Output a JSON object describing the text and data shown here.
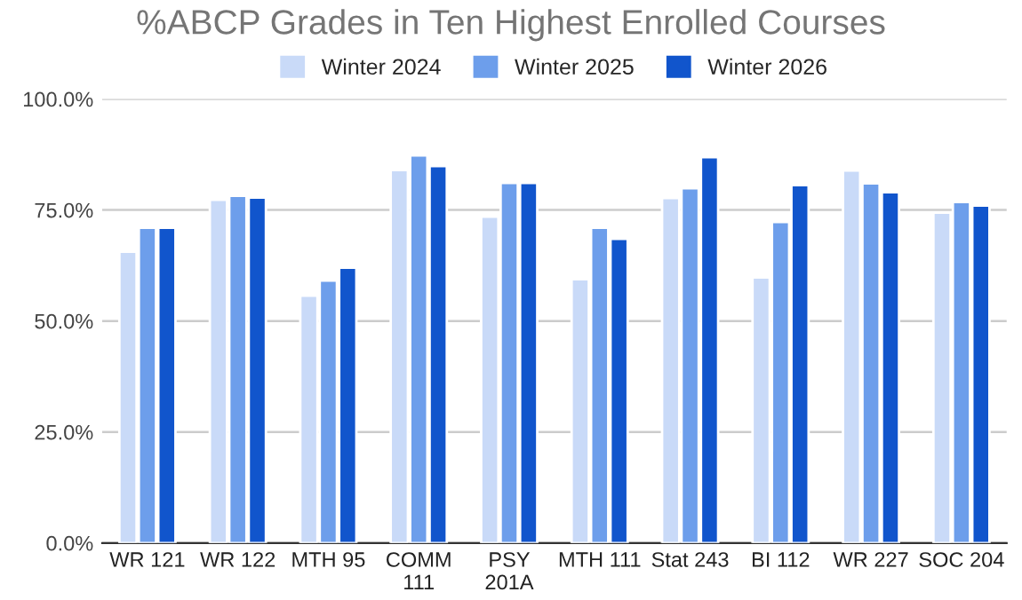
{
  "chart_data": {
    "type": "bar",
    "title": "%ABCP Grades in Ten Highest Enrolled Courses",
    "categories": [
      "WR 121",
      "WR 122",
      "MTH 95",
      "COMM\n111",
      "PSY\n201A",
      "MTH 111",
      "Stat 243",
      "BI 112",
      "WR 227",
      "SOC 204"
    ],
    "series": [
      {
        "name": "Winter 2024",
        "color": "#c9daf8",
        "values": [
          65.6,
          77.3,
          55.7,
          84.0,
          73.5,
          59.4,
          77.7,
          59.8,
          83.9,
          74.4
        ]
      },
      {
        "name": "Winter 2025",
        "color": "#6d9eeb",
        "values": [
          71.0,
          78.2,
          59.1,
          87.3,
          81.1,
          71.0,
          79.9,
          72.3,
          81.0,
          76.8
        ]
      },
      {
        "name": "Winter 2026",
        "color": "#1155cc",
        "values": [
          71.0,
          77.8,
          62.0,
          84.9,
          81.1,
          68.5,
          86.9,
          80.6,
          79.0,
          76.0
        ]
      }
    ],
    "ylim": [
      0,
      100
    ],
    "yticks": [
      {
        "value": 0,
        "label": "0.0%"
      },
      {
        "value": 25,
        "label": "25.0%"
      },
      {
        "value": 50,
        "label": "50.0%"
      },
      {
        "value": 75,
        "label": "75.0%"
      },
      {
        "value": 100,
        "label": "100.0%"
      }
    ],
    "grid": "y",
    "legend": "top"
  }
}
